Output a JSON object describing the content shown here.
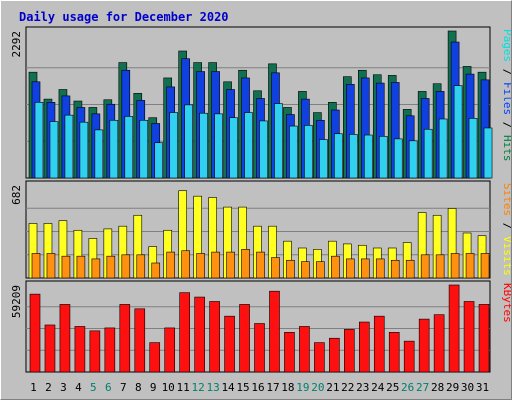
{
  "chart_data": {
    "type": "bar",
    "title": "Daily usage for December 2020",
    "categories": [
      "1",
      "2",
      "3",
      "4",
      "5",
      "6",
      "7",
      "8",
      "9",
      "10",
      "11",
      "12",
      "13",
      "14",
      "15",
      "16",
      "17",
      "18",
      "19",
      "20",
      "21",
      "22",
      "23",
      "24",
      "25",
      "26",
      "27",
      "28",
      "29",
      "30",
      "31"
    ],
    "weekend_days": [
      "5",
      "6",
      "12",
      "13",
      "19",
      "20",
      "26",
      "27"
    ],
    "panels": [
      {
        "id": "hits-files-pages",
        "ymax_label": "2292",
        "ylim": [
          0,
          2292
        ],
        "legend": [
          "Pages",
          "Files",
          "Hits"
        ],
        "legend_colors": [
          "#00e0e0",
          "#0040ff",
          "#008040"
        ],
        "series": [
          {
            "name": "Hits",
            "color": "#107050",
            "values": [
              1650,
              1230,
              1380,
              1200,
              1100,
              1220,
              1800,
              1320,
              940,
              1560,
              1980,
              1800,
              1800,
              1500,
              1680,
              1360,
              1780,
              1100,
              1350,
              1020,
              1180,
              1580,
              1680,
              1610,
              1600,
              1070,
              1350,
              1470,
              2292,
              1740,
              1650
            ]
          },
          {
            "name": "Files",
            "color": "#1040e0",
            "values": [
              1500,
              1180,
              1280,
              1100,
              1000,
              1150,
              1680,
              1210,
              850,
              1420,
              1860,
              1660,
              1660,
              1380,
              1560,
              1240,
              1640,
              990,
              1230,
              900,
              1060,
              1460,
              1560,
              1480,
              1490,
              970,
              1240,
              1350,
              2120,
              1620,
              1530
            ]
          },
          {
            "name": "Pages",
            "color": "#30d0f0",
            "values": [
              1180,
              880,
              980,
              870,
              750,
              900,
              960,
              900,
              550,
              1020,
              1140,
              1010,
              1000,
              940,
              1020,
              890,
              1160,
              810,
              820,
              600,
              690,
              680,
              670,
              650,
              610,
              580,
              760,
              920,
              1440,
              930,
              780
            ]
          }
        ]
      },
      {
        "id": "visits-sites",
        "ymax_label": "682",
        "ylim": [
          0,
          682
        ],
        "legend": [
          "Sites",
          "/",
          "Visits"
        ],
        "legend_colors": [
          "#ff8000",
          "#000000",
          "#ffff00"
        ],
        "series": [
          {
            "name": "Visits",
            "color": "#ffff20",
            "values": [
              400,
              400,
              420,
              350,
              290,
              360,
              380,
              460,
              230,
              350,
              640,
              600,
              590,
              520,
              520,
              380,
              380,
              270,
              220,
              210,
              270,
              250,
              240,
              220,
              220,
              260,
              480,
              460,
              510,
              330,
              310
            ]
          },
          {
            "name": "Sites",
            "color": "#ff9010",
            "values": [
              180,
              180,
              160,
              160,
              140,
              160,
              170,
              170,
              110,
              190,
              200,
              180,
              190,
              190,
              210,
              190,
              150,
              130,
              120,
              120,
              160,
              140,
              140,
              140,
              130,
              130,
              170,
              170,
              180,
              180,
              180
            ]
          }
        ]
      },
      {
        "id": "kbytes",
        "ymax_label": "59209",
        "ylim": [
          0,
          59209
        ],
        "legend": [
          "KBytes"
        ],
        "legend_colors": [
          "#ff0000"
        ],
        "series": [
          {
            "name": "KBytes",
            "color": "#ff1010",
            "values": [
              53000,
              32000,
              46000,
              31000,
              28000,
              30000,
              46000,
              43000,
              20000,
              30000,
              54000,
              51000,
              48000,
              38000,
              46000,
              33000,
              55000,
              27000,
              31000,
              20000,
              23000,
              29000,
              34000,
              38000,
              27000,
              21000,
              36000,
              39000,
              59209,
              48000,
              46000
            ]
          }
        ]
      }
    ]
  }
}
